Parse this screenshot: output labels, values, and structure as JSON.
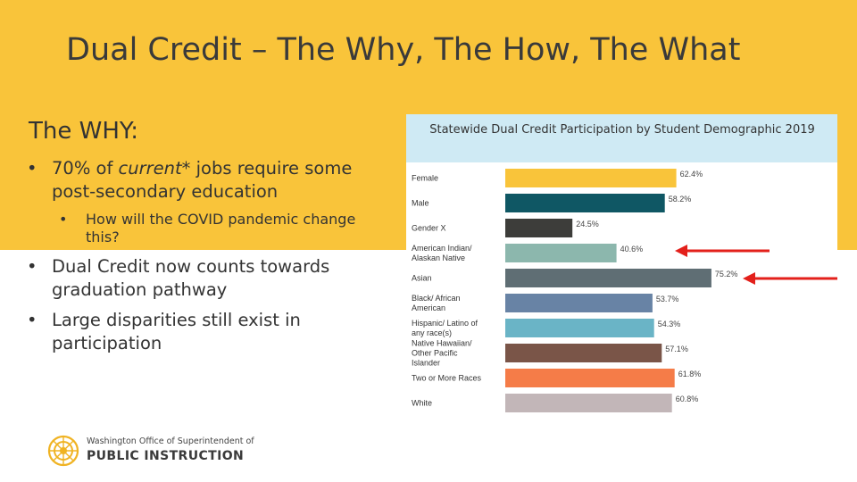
{
  "slide": {
    "title": "Dual Credit – The Why, The How, The What",
    "subhead": "The WHY:",
    "bullet_dot": "•",
    "bullet1_prefix": "70% of ",
    "bullet1_em": "current",
    "bullet1_suffix": "* jobs require some post-secondary education",
    "sub_bullet1": "How will the COVID pandemic change this?",
    "bullet2": "Dual Credit now counts towards graduation pathway",
    "bullet3": "Large disparities still exist in participation"
  },
  "logo": {
    "line1": "Washington Office of Superintendent of",
    "line2": "PUBLIC INSTRUCTION",
    "icon": "sun-rays-icon"
  },
  "annotations": {
    "arrow_color": "#e3201b",
    "arrow_targets": [
      "American Indian/ Alaskan Native",
      "Asian"
    ]
  },
  "chart_data": {
    "type": "bar",
    "orientation": "horizontal",
    "title": "Statewide Dual Credit Participation by Student Demographic 2019",
    "categories": [
      "Female",
      "Male",
      "Gender X",
      "American Indian/ Alaskan Native",
      "Asian",
      "Black/ African American",
      "Hispanic/ Latino of any race(s)",
      "Native Hawaiian/ Other Pacific Islander",
      "Two or More Races",
      "White"
    ],
    "values": [
      62.4,
      58.2,
      24.5,
      40.6,
      75.2,
      53.7,
      54.3,
      57.1,
      61.8,
      60.8
    ],
    "value_labels": [
      "62.4%",
      "58.2%",
      "24.5%",
      "40.6%",
      "75.2%",
      "53.7%",
      "54.3%",
      "57.1%",
      "61.8%",
      "60.8%"
    ],
    "colors": [
      "#f9c43a",
      "#0f5764",
      "#3d3d3a",
      "#8cb7ad",
      "#5f6e74",
      "#6883a5",
      "#6ab4c6",
      "#7a5548",
      "#f57c48",
      "#c2b6b8"
    ],
    "xlim": [
      0,
      100
    ],
    "legend": "none",
    "grid": false
  }
}
